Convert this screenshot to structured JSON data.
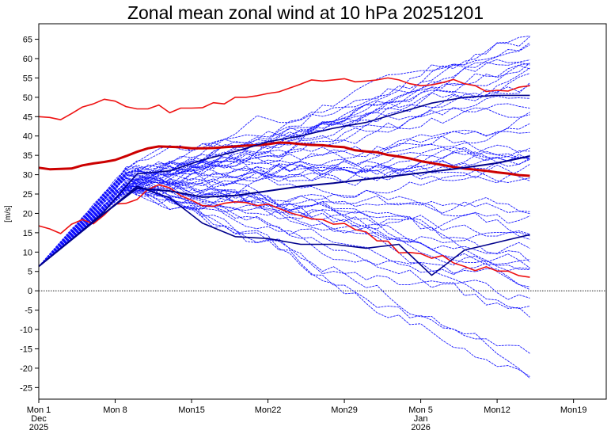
{
  "chart_data": {
    "type": "line",
    "title": "Zonal mean zonal wind at 10 hPa 20251201",
    "ylabel": "[m/s]",
    "xlabel": "",
    "xlim": [
      0,
      52
    ],
    "ylim": [
      -28,
      69
    ],
    "y_ticks": [
      65,
      60,
      55,
      50,
      45,
      40,
      35,
      30,
      25,
      20,
      15,
      10,
      5,
      0,
      -5,
      -10,
      -15,
      -20,
      -25
    ],
    "x_ticks": [
      {
        "day": 0,
        "label": "Mon 1",
        "sub1": "Dec",
        "sub2": "2025"
      },
      {
        "day": 7,
        "label": "Mon 8",
        "sub1": "",
        "sub2": ""
      },
      {
        "day": 14,
        "label": "Mon15",
        "sub1": "",
        "sub2": ""
      },
      {
        "day": 21,
        "label": "Mon22",
        "sub1": "",
        "sub2": ""
      },
      {
        "day": 28,
        "label": "Mon29",
        "sub1": "",
        "sub2": ""
      },
      {
        "day": 35,
        "label": "Mon 5",
        "sub1": "Jan",
        "sub2": "2026"
      },
      {
        "day": 42,
        "label": "Mon12",
        "sub1": "",
        "sub2": ""
      },
      {
        "day": 49,
        "label": "Mon19",
        "sub1": "",
        "sub2": ""
      }
    ],
    "zero_line": 0,
    "climatology_series": [
      {
        "role": "max",
        "color": "#ee1111",
        "width": 1.6,
        "x": [
          0,
          1,
          2,
          3,
          4,
          5,
          6,
          7,
          8,
          9,
          10,
          11,
          12,
          13,
          14,
          15,
          16,
          17,
          18,
          19,
          20,
          21,
          22,
          23,
          24,
          25,
          26,
          27,
          28,
          29,
          30,
          31,
          32,
          33,
          34,
          35,
          36,
          37,
          38,
          39,
          40,
          41,
          42,
          43,
          44,
          45
        ],
        "y": [
          45,
          44.8,
          44.2,
          45.8,
          47.5,
          48.3,
          49.5,
          49,
          47.6,
          47,
          47,
          48,
          46,
          47.2,
          47.2,
          47.3,
          48.6,
          48.3,
          50,
          50,
          50.4,
          51,
          51.4,
          52.4,
          53.4,
          54.5,
          54.2,
          54.5,
          54.8,
          54,
          54.2,
          54.5,
          55,
          54.5,
          53.5,
          53,
          53.2,
          53.8,
          54.6,
          53.5,
          53,
          51.5,
          51.8,
          51.6,
          52.6,
          53
        ]
      },
      {
        "role": "mean",
        "color": "#cc0000",
        "width": 3,
        "x": [
          0,
          1,
          2,
          3,
          4,
          5,
          6,
          7,
          8,
          9,
          10,
          11,
          12,
          13,
          14,
          15,
          16,
          17,
          18,
          19,
          20,
          21,
          22,
          23,
          24,
          25,
          26,
          27,
          28,
          29,
          30,
          31,
          32,
          33,
          34,
          35,
          36,
          37,
          38,
          39,
          40,
          41,
          42,
          43,
          44,
          45
        ],
        "y": [
          31.8,
          31.4,
          31.5,
          31.6,
          32.4,
          32.9,
          33.3,
          33.8,
          34.8,
          35.9,
          36.8,
          37.3,
          37.2,
          37.1,
          36.8,
          36.8,
          36.9,
          37.1,
          37.3,
          37.5,
          37.6,
          37.9,
          38.3,
          38.2,
          37.9,
          37.7,
          37.6,
          37.3,
          37.1,
          36.3,
          36,
          35.8,
          35.1,
          34.7,
          34.2,
          33.5,
          33,
          32.5,
          32,
          31.6,
          31.3,
          31,
          30.6,
          30.3,
          29.9,
          29.7
        ]
      },
      {
        "role": "min",
        "color": "#ee1111",
        "width": 1.6,
        "x": [
          0,
          1,
          2,
          3,
          4,
          5,
          6,
          7,
          8,
          9,
          10,
          11,
          12,
          13,
          14,
          15,
          16,
          17,
          18,
          19,
          20,
          21,
          22,
          23,
          24,
          25,
          26,
          27,
          28,
          29,
          30,
          31,
          32,
          33,
          34,
          35,
          36,
          37,
          38,
          39,
          40,
          41,
          42,
          43,
          44,
          45
        ],
        "y": [
          16.8,
          16,
          14.8,
          17.2,
          18.4,
          17.3,
          19.6,
          22.4,
          22.6,
          23.6,
          26.2,
          27.4,
          26.6,
          24.6,
          23.4,
          22,
          21.8,
          22.6,
          23,
          22.8,
          22,
          22.4,
          21.3,
          20.2,
          19.4,
          18.6,
          18.4,
          17.2,
          17.4,
          15.8,
          15.2,
          12.9,
          12.8,
          9.8,
          9.9,
          9.6,
          8.4,
          9.1,
          7.2,
          6.3,
          5.2,
          6.2,
          5.1,
          5.1,
          3.9,
          3.5
        ]
      }
    ],
    "ensemble": {
      "color": "#1010ff",
      "width": 0.9,
      "members": 50,
      "days": 45,
      "start": 6.3,
      "early_peak": 28.5,
      "end_range": [
        -25,
        67
      ]
    },
    "highlight_series": [
      {
        "role": "ensemble-mean",
        "color": "#00008b",
        "width": 2,
        "x": [
          0,
          3,
          6,
          9,
          12,
          15,
          18,
          21,
          24,
          27,
          30,
          33,
          36,
          39,
          42,
          45
        ],
        "y": [
          6.3,
          13.2,
          20,
          26.5,
          25.8,
          24.2,
          24.6,
          25.8,
          27,
          27.8,
          28.8,
          29.8,
          30.8,
          31.8,
          33,
          34.8
        ]
      },
      {
        "role": "member-a",
        "color": "#00008b",
        "width": 1.6,
        "x": [
          0,
          3,
          6,
          9,
          12,
          15,
          18,
          21,
          24,
          27,
          30,
          33,
          36,
          39,
          42,
          45
        ],
        "y": [
          6.3,
          13.2,
          20.5,
          30.2,
          31,
          33.8,
          36,
          38.5,
          40,
          42,
          43.5,
          46,
          48.5,
          50,
          50.5,
          50.5
        ]
      },
      {
        "role": "member-b",
        "color": "#00008b",
        "width": 1.6,
        "x": [
          0,
          3,
          6,
          9,
          12,
          15,
          18,
          21,
          24,
          27,
          30,
          33,
          36,
          39,
          42,
          45
        ],
        "y": [
          6.3,
          13.2,
          20,
          27,
          24,
          17.5,
          14,
          13.5,
          12,
          12,
          11,
          12,
          4,
          10.5,
          12.5,
          14.5
        ]
      }
    ]
  }
}
